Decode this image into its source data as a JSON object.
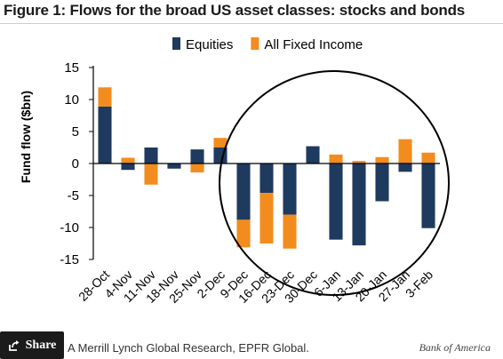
{
  "figure": {
    "title": "Figure 1: Flows for the broad US asset classes: stocks and bonds",
    "source": "A Merrill Lynch Global Research, EPFR Global.",
    "brand": "Bank of America"
  },
  "share": {
    "label": "Share",
    "icon": "share-icon"
  },
  "colors": {
    "equities": "#1f3a5f",
    "fixed_income": "#f28c1e",
    "axis": "#000000",
    "ellipse": "#000000"
  },
  "chart_data": {
    "type": "bar",
    "stacked": true,
    "ylabel": "Fund flow ($bn)",
    "ylim": [
      -15,
      15
    ],
    "yticks": [
      15,
      10,
      5,
      0,
      -5,
      -10,
      -15
    ],
    "legend_position": "top",
    "categories": [
      "28-Oct",
      "4-Nov",
      "11-Nov",
      "18-Nov",
      "25-Nov",
      "2-Dec",
      "9-Dec",
      "16-Dec",
      "23-Dec",
      "30-Dec",
      "6-Jan",
      "13-Jan",
      "20-Jan",
      "27-Jan",
      "3-Feb"
    ],
    "series": [
      {
        "name": "Equities",
        "color": "#1f3a5f",
        "values": [
          8.9,
          -1.0,
          2.5,
          -0.8,
          2.2,
          2.5,
          -8.8,
          -4.6,
          -8.0,
          2.7,
          -11.9,
          -12.8,
          -5.9,
          -1.3,
          -10.1
        ]
      },
      {
        "name": "All Fixed Income",
        "color": "#f28c1e",
        "values": [
          3.0,
          0.9,
          -3.3,
          0.0,
          -1.4,
          1.5,
          -4.3,
          -7.9,
          -5.3,
          0.0,
          1.4,
          0.4,
          1.0,
          3.8,
          1.7
        ]
      }
    ],
    "annotation": "ellipse around 9-Dec through 3-Feb"
  }
}
